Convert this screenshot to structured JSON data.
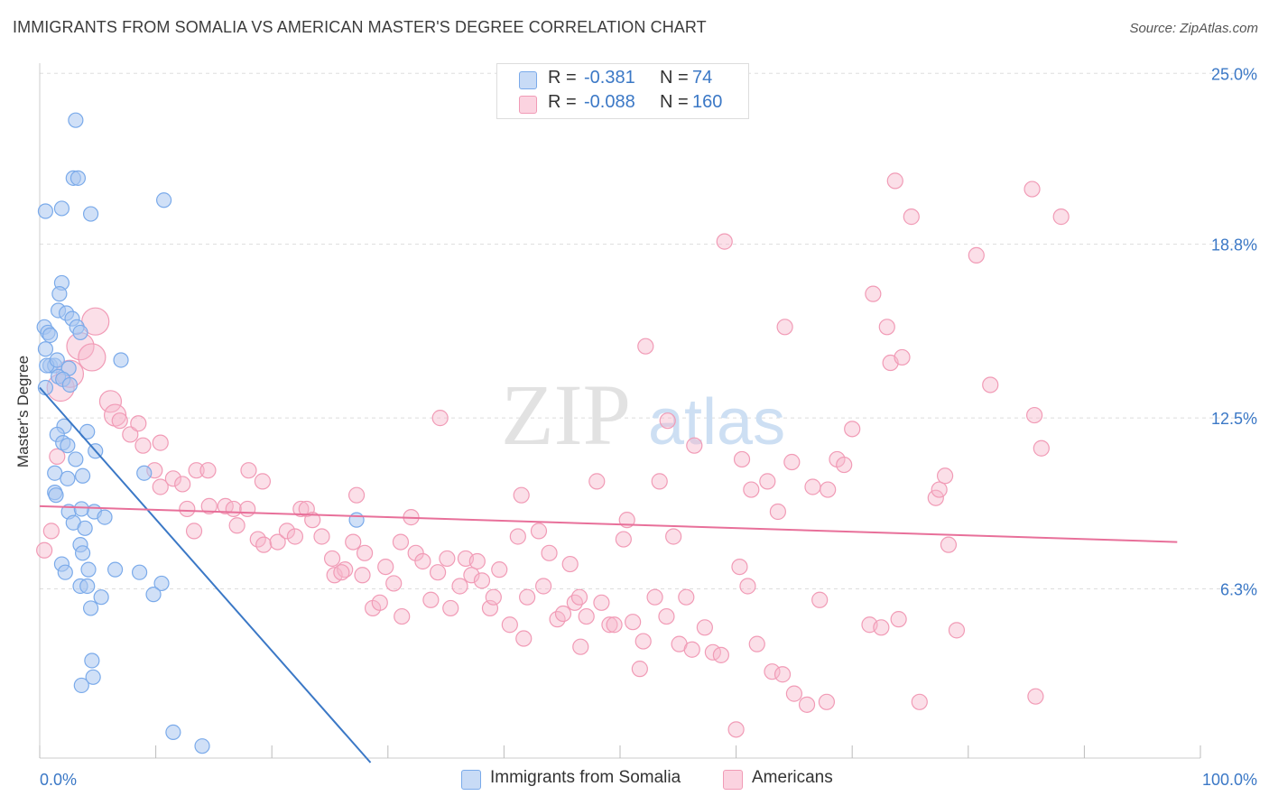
{
  "title": "IMMIGRANTS FROM SOMALIA VS AMERICAN MASTER'S DEGREE CORRELATION CHART",
  "source": "Source: ZipAtlas.com",
  "watermark": {
    "zip": "ZIP",
    "atlas": "atlas"
  },
  "legend": {
    "rows": [
      {
        "r_label": "R =",
        "r_value": "-0.381",
        "n_label": "N =",
        "n_value": "74",
        "color": "#7aaaea"
      },
      {
        "r_label": "R =",
        "r_value": "-0.088",
        "n_label": "N =",
        "n_value": "160",
        "color": "#f19bb6"
      }
    ]
  },
  "bottom_legend": [
    {
      "label": "Immigrants from Somalia",
      "color": "#7aaaea"
    },
    {
      "label": "Americans",
      "color": "#f19bb6"
    }
  ],
  "colors": {
    "blue": "#3b78c6",
    "blue_fill": "#a9c7f0",
    "pink_line": "#e8709a",
    "pink_fill": "#f7b9cd",
    "grid": "#dddddd",
    "tick_text": "#3b78c6"
  },
  "chart_data": {
    "type": "scatter",
    "title": "IMMIGRANTS FROM SOMALIA VS AMERICAN MASTER'S DEGREE CORRELATION CHART",
    "xlabel": "",
    "ylabel": "Master's Degree",
    "xlim": [
      0,
      100
    ],
    "ylim": [
      0,
      26
    ],
    "x_tick_labels": [
      "0.0%",
      "100.0%"
    ],
    "y_ticks": [
      6.3,
      12.5,
      18.8,
      25.0
    ],
    "y_tick_labels": [
      "6.3%",
      "12.5%",
      "18.8%",
      "25.0%"
    ],
    "grid": "horizontal dashed",
    "legend_position": "top-center",
    "series": [
      {
        "name": "Immigrants from Somalia",
        "color": "#7aaaea",
        "trend": {
          "x": [
            0.0,
            28.5
          ],
          "y": [
            13.6,
            0.0
          ]
        },
        "points": [
          [
            0.5,
            20.0
          ],
          [
            1.9,
            20.1
          ],
          [
            3.1,
            23.3
          ],
          [
            2.9,
            21.2
          ],
          [
            3.3,
            21.2
          ],
          [
            4.4,
            19.9
          ],
          [
            10.7,
            20.4
          ],
          [
            0.4,
            15.8
          ],
          [
            0.7,
            15.6
          ],
          [
            0.9,
            15.5
          ],
          [
            0.5,
            15.0
          ],
          [
            0.9,
            14.4
          ],
          [
            1.3,
            14.4
          ],
          [
            0.6,
            14.4
          ],
          [
            1.6,
            16.4
          ],
          [
            1.9,
            17.4
          ],
          [
            1.7,
            17.0
          ],
          [
            2.3,
            16.3
          ],
          [
            2.8,
            16.1
          ],
          [
            3.2,
            15.8
          ],
          [
            3.5,
            15.6
          ],
          [
            1.5,
            14.6
          ],
          [
            2.5,
            14.3
          ],
          [
            1.6,
            14.0
          ],
          [
            2.0,
            13.9
          ],
          [
            2.6,
            13.7
          ],
          [
            0.5,
            13.6
          ],
          [
            7.0,
            14.6
          ],
          [
            2.1,
            12.2
          ],
          [
            4.1,
            12.0
          ],
          [
            1.5,
            11.9
          ],
          [
            2.0,
            11.6
          ],
          [
            2.4,
            11.5
          ],
          [
            4.8,
            11.3
          ],
          [
            3.1,
            11.0
          ],
          [
            1.3,
            10.5
          ],
          [
            3.7,
            10.4
          ],
          [
            2.4,
            10.3
          ],
          [
            9.0,
            10.5
          ],
          [
            1.3,
            9.8
          ],
          [
            1.4,
            9.7
          ],
          [
            4.7,
            9.1
          ],
          [
            2.5,
            9.1
          ],
          [
            2.9,
            8.7
          ],
          [
            3.6,
            9.2
          ],
          [
            3.9,
            8.5
          ],
          [
            5.6,
            8.9
          ],
          [
            3.5,
            7.9
          ],
          [
            3.7,
            7.6
          ],
          [
            1.9,
            7.2
          ],
          [
            4.2,
            7.0
          ],
          [
            6.5,
            7.0
          ],
          [
            8.6,
            6.9
          ],
          [
            2.2,
            6.9
          ],
          [
            3.5,
            6.4
          ],
          [
            4.1,
            6.4
          ],
          [
            10.5,
            6.5
          ],
          [
            5.3,
            6.0
          ],
          [
            9.8,
            6.1
          ],
          [
            4.4,
            5.6
          ],
          [
            4.5,
            3.7
          ],
          [
            4.6,
            3.1
          ],
          [
            3.6,
            2.8
          ],
          [
            11.5,
            1.1
          ],
          [
            14.0,
            0.6
          ],
          [
            27.3,
            8.8
          ]
        ]
      },
      {
        "name": "Americans",
        "color": "#f19bb6",
        "trend": {
          "x": [
            0.0,
            98.0
          ],
          "y": [
            9.3,
            8.0
          ]
        },
        "points": [
          [
            0.4,
            7.7
          ],
          [
            1.0,
            8.4
          ],
          [
            1.5,
            11.1
          ],
          [
            1.8,
            13.6
          ],
          [
            2.6,
            14.1
          ],
          [
            3.5,
            15.1
          ],
          [
            4.5,
            14.7
          ],
          [
            4.8,
            16.0
          ],
          [
            6.1,
            13.1
          ],
          [
            6.5,
            12.6
          ],
          [
            6.9,
            12.4
          ],
          [
            7.8,
            11.9
          ],
          [
            8.5,
            12.3
          ],
          [
            8.9,
            11.5
          ],
          [
            10.4,
            11.6
          ],
          [
            9.9,
            10.6
          ],
          [
            10.4,
            10.0
          ],
          [
            11.5,
            10.3
          ],
          [
            12.3,
            10.1
          ],
          [
            13.5,
            10.6
          ],
          [
            14.5,
            10.6
          ],
          [
            12.7,
            9.2
          ],
          [
            13.3,
            8.4
          ],
          [
            14.6,
            9.3
          ],
          [
            16.0,
            9.3
          ],
          [
            16.7,
            9.2
          ],
          [
            17.0,
            8.6
          ],
          [
            18.0,
            10.6
          ],
          [
            19.2,
            10.2
          ],
          [
            17.9,
            9.2
          ],
          [
            18.8,
            8.1
          ],
          [
            19.3,
            7.9
          ],
          [
            20.5,
            8.0
          ],
          [
            21.3,
            8.4
          ],
          [
            22.0,
            8.2
          ],
          [
            22.5,
            9.2
          ],
          [
            23.0,
            9.2
          ],
          [
            23.5,
            8.8
          ],
          [
            24.3,
            8.2
          ],
          [
            25.2,
            7.4
          ],
          [
            25.4,
            6.8
          ],
          [
            26.3,
            7.0
          ],
          [
            26.0,
            6.9
          ],
          [
            27.0,
            8.0
          ],
          [
            27.3,
            9.7
          ],
          [
            28.0,
            7.6
          ],
          [
            27.8,
            6.8
          ],
          [
            28.7,
            5.6
          ],
          [
            29.3,
            5.8
          ],
          [
            29.8,
            7.1
          ],
          [
            30.5,
            6.5
          ],
          [
            31.1,
            8.0
          ],
          [
            31.2,
            5.3
          ],
          [
            32.0,
            8.9
          ],
          [
            32.4,
            7.6
          ],
          [
            33.0,
            7.3
          ],
          [
            33.7,
            5.9
          ],
          [
            34.3,
            6.9
          ],
          [
            34.5,
            12.5
          ],
          [
            35.1,
            7.4
          ],
          [
            35.4,
            5.6
          ],
          [
            36.2,
            6.4
          ],
          [
            36.7,
            7.4
          ],
          [
            37.2,
            6.8
          ],
          [
            37.7,
            7.3
          ],
          [
            38.1,
            6.6
          ],
          [
            38.8,
            5.6
          ],
          [
            39.1,
            6.0
          ],
          [
            39.6,
            7.0
          ],
          [
            40.5,
            5.0
          ],
          [
            41.2,
            8.2
          ],
          [
            41.5,
            9.7
          ],
          [
            41.7,
            4.5
          ],
          [
            42.0,
            6.0
          ],
          [
            43.0,
            8.4
          ],
          [
            43.4,
            6.4
          ],
          [
            43.9,
            7.6
          ],
          [
            44.6,
            5.2
          ],
          [
            45.1,
            5.4
          ],
          [
            45.7,
            7.2
          ],
          [
            46.1,
            5.8
          ],
          [
            46.5,
            6.0
          ],
          [
            46.6,
            4.2
          ],
          [
            47.1,
            5.3
          ],
          [
            48.0,
            10.2
          ],
          [
            48.4,
            5.8
          ],
          [
            49.1,
            5.0
          ],
          [
            49.5,
            5.0
          ],
          [
            50.3,
            8.1
          ],
          [
            50.6,
            8.8
          ],
          [
            51.1,
            5.1
          ],
          [
            51.7,
            3.4
          ],
          [
            52.0,
            4.4
          ],
          [
            52.2,
            15.1
          ],
          [
            53.0,
            6.0
          ],
          [
            53.4,
            10.2
          ],
          [
            54.0,
            5.3
          ],
          [
            54.1,
            12.4
          ],
          [
            54.6,
            8.2
          ],
          [
            55.1,
            4.3
          ],
          [
            55.7,
            6.0
          ],
          [
            56.2,
            4.1
          ],
          [
            56.4,
            11.5
          ],
          [
            57.3,
            4.9
          ],
          [
            58.0,
            4.0
          ],
          [
            58.7,
            3.9
          ],
          [
            59.0,
            18.9
          ],
          [
            60.3,
            7.1
          ],
          [
            60.5,
            11.0
          ],
          [
            61.0,
            6.4
          ],
          [
            61.3,
            9.9
          ],
          [
            61.8,
            4.3
          ],
          [
            62.7,
            10.2
          ],
          [
            63.1,
            3.3
          ],
          [
            63.6,
            9.1
          ],
          [
            64.0,
            3.2
          ],
          [
            64.2,
            15.8
          ],
          [
            64.8,
            10.9
          ],
          [
            65.0,
            2.5
          ],
          [
            66.1,
            2.1
          ],
          [
            66.6,
            10.0
          ],
          [
            67.2,
            5.9
          ],
          [
            67.8,
            2.2
          ],
          [
            67.9,
            9.9
          ],
          [
            68.7,
            11.0
          ],
          [
            69.3,
            10.8
          ],
          [
            70.0,
            12.1
          ],
          [
            71.5,
            5.0
          ],
          [
            71.8,
            17.0
          ],
          [
            72.5,
            4.9
          ],
          [
            73.0,
            15.8
          ],
          [
            73.3,
            14.5
          ],
          [
            74.0,
            5.2
          ],
          [
            74.3,
            14.7
          ],
          [
            73.7,
            21.1
          ],
          [
            75.1,
            19.8
          ],
          [
            75.8,
            2.2
          ],
          [
            77.2,
            9.6
          ],
          [
            77.5,
            9.9
          ],
          [
            78.0,
            10.4
          ],
          [
            78.3,
            7.9
          ],
          [
            79.0,
            4.8
          ],
          [
            80.7,
            18.4
          ],
          [
            81.9,
            13.7
          ],
          [
            85.5,
            20.8
          ],
          [
            85.7,
            12.6
          ],
          [
            85.8,
            2.4
          ],
          [
            86.3,
            11.4
          ],
          [
            88.0,
            19.8
          ],
          [
            60.0,
            1.2
          ]
        ]
      }
    ]
  }
}
